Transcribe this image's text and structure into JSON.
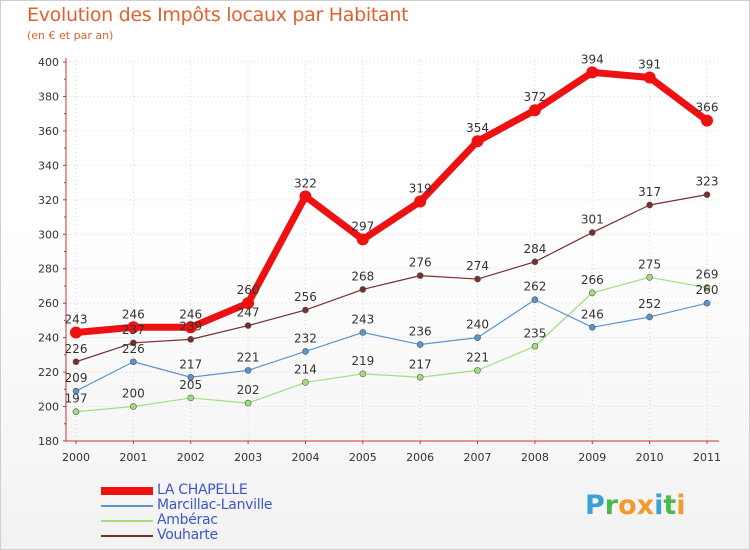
{
  "title": "Evolution des Impôts locaux par Habitant",
  "subtitle": "(en € et par an)",
  "brand": {
    "letters": [
      "P",
      "r",
      "o",
      "x",
      "i",
      "t",
      "i"
    ],
    "letter_colors": [
      "#3aa0d6",
      "#4bb84c",
      "#f29a2e",
      "#f29a2e",
      "#3aa0d6",
      "#4bb84c",
      "#f29a2e"
    ]
  },
  "chart_data": {
    "type": "line",
    "title": "Evolution des Impôts locaux par Habitant",
    "subtitle": "(en € et par an)",
    "xlabel": "",
    "ylabel": "",
    "x": [
      "2000",
      "2001",
      "2002",
      "2003",
      "2004",
      "2005",
      "2006",
      "2007",
      "2008",
      "2009",
      "2010",
      "2011"
    ],
    "ylim": [
      180,
      400
    ],
    "yticks": [
      180,
      200,
      220,
      240,
      260,
      280,
      300,
      320,
      340,
      360,
      380,
      400
    ],
    "grid": true,
    "legend_position": "bottom-left",
    "series": [
      {
        "name": "LA CHAPELLE",
        "color": "#ee1111",
        "values": [
          243,
          246,
          246,
          260,
          322,
          297,
          319,
          354,
          372,
          394,
          391,
          366
        ]
      },
      {
        "name": "Marcillac-Lanville",
        "color": "#5b95d1",
        "values": [
          209,
          226,
          217,
          221,
          232,
          243,
          236,
          240,
          262,
          246,
          252,
          260
        ]
      },
      {
        "name": "Ambérac",
        "color": "#9ee07a",
        "values": [
          197,
          200,
          205,
          202,
          214,
          219,
          217,
          221,
          235,
          266,
          275,
          269
        ]
      },
      {
        "name": "Vouharte",
        "color": "#7a2e2e",
        "values": [
          226,
          237,
          239,
          247,
          256,
          268,
          276,
          274,
          284,
          301,
          317,
          323
        ]
      }
    ]
  }
}
